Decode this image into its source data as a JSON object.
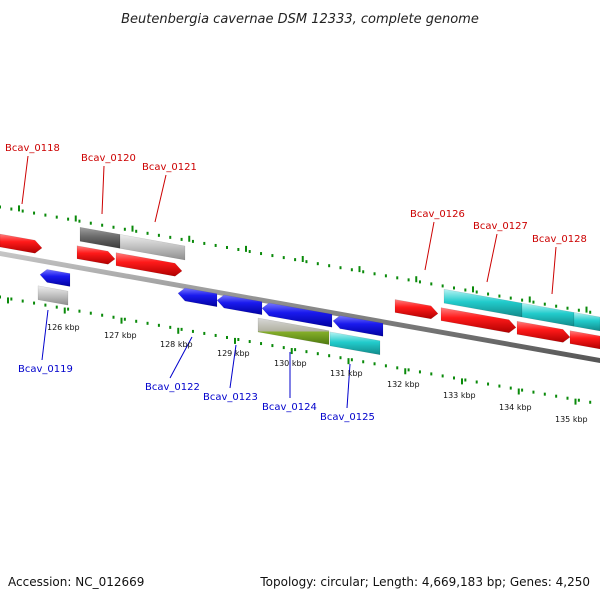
{
  "title": "Beutenbergia cavernae DSM 12333, complete genome",
  "footer": {
    "accession": "Accession: NC_012669",
    "summary": "Topology: circular; Length: 4,669,183 bp; Genes: 4,250"
  },
  "colors": {
    "forward_label": "#cc0000",
    "reverse_label": "#0000cc",
    "backbone": "#8a8a8a",
    "tick_track": "#0a8a0a",
    "red_gene": "#ee1111",
    "blue_gene": "#1111dd",
    "cyan_gene": "#22cccc",
    "gray_gene": "#c4c4c4",
    "dark_gray_gene": "#6a6a6a",
    "olive_gene": "#6a9a1a"
  },
  "scale_ticks": [
    "126 kbp",
    "127 kbp",
    "128 kbp",
    "129 kbp",
    "130 kbp",
    "131 kbp",
    "132 kbp",
    "133 kbp",
    "134 kbp",
    "135 kbp"
  ],
  "forward_labels": [
    "Bcav_0118",
    "Bcav_0120",
    "Bcav_0121",
    "Bcav_0126",
    "Bcav_0127",
    "Bcav_0128"
  ],
  "reverse_labels": [
    "Bcav_0119",
    "Bcav_0122",
    "Bcav_0123",
    "Bcav_0124",
    "Bcav_0125"
  ]
}
